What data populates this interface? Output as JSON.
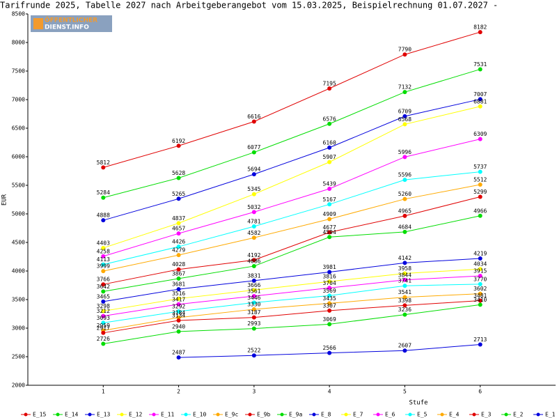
{
  "chart_data": {
    "type": "line",
    "title": "Tarifrunde 2025, Tabelle 2027 nach Arbeitgeberangebot vom 15.03.2025, Beispielrechnung 01.07.2027 -",
    "logo": [
      "ÖFFENTLICHER",
      "DIENST.INFO"
    ],
    "x_label": "Stufe",
    "y_label": "EUR",
    "x": [
      1,
      2,
      3,
      4,
      5,
      6
    ],
    "xlim": [
      0,
      7
    ],
    "xticks": [
      1,
      2,
      3,
      4,
      5,
      6
    ],
    "ylim": [
      2000,
      8500
    ],
    "yticks": [
      2000,
      2500,
      3000,
      3500,
      4000,
      4500,
      5000,
      5500,
      6000,
      6500,
      7000,
      7500,
      8000,
      8500
    ],
    "series": [
      {
        "name": "E_15",
        "color": "#e00000",
        "values": [
          5812,
          6192,
          6616,
          7195,
          7790,
          8182
        ]
      },
      {
        "name": "E_14",
        "color": "#00dd00",
        "values": [
          5284,
          5628,
          6077,
          6576,
          7132,
          7531
        ]
      },
      {
        "name": "E_13",
        "color": "#0000dd",
        "values": [
          4888,
          5265,
          5694,
          6160,
          6709,
          7007
        ]
      },
      {
        "name": "E_12",
        "color": "#ffff00",
        "values": [
          4403,
          4837,
          5345,
          5907,
          6568,
          6881
        ]
      },
      {
        "name": "E_11",
        "color": "#ff00ff",
        "values": [
          4258,
          4657,
          5032,
          5439,
          5996,
          6309
        ]
      },
      {
        "name": "E_10",
        "color": "#00ffff",
        "values": [
          4113,
          4426,
          4781,
          5167,
          5596,
          5737
        ]
      },
      {
        "name": "E_9c",
        "color": "#ffaa00",
        "values": [
          3999,
          4279,
          4582,
          4909,
          5260,
          5512
        ]
      },
      {
        "name": "E_9b",
        "color": "#e00000",
        "values": [
          3766,
          4028,
          4192,
          4677,
          4965,
          5299
        ]
      },
      {
        "name": "E_9a",
        "color": "#00dd00",
        "values": [
          3642,
          3867,
          4086,
          4594,
          4684,
          4966
        ]
      },
      {
        "name": "E_8",
        "color": "#0000dd",
        "values": [
          3465,
          3681,
          3831,
          3981,
          4142,
          4219
        ]
      },
      {
        "name": "E_7",
        "color": "#ffff00",
        "values": [
          3298,
          3516,
          3666,
          3816,
          3958,
          4034
        ]
      },
      {
        "name": "E_6",
        "color": "#ff00ff",
        "values": [
          3212,
          3417,
          3561,
          3704,
          3844,
          3915
        ]
      },
      {
        "name": "E_5",
        "color": "#00ffff",
        "values": [
          3093,
          3292,
          3446,
          3569,
          3741,
          3770
        ]
      },
      {
        "name": "E_4",
        "color": "#ffaa00",
        "values": [
          2959,
          3184,
          3330,
          3435,
          3541,
          3602
        ]
      },
      {
        "name": "E_3",
        "color": "#e00000",
        "values": [
          2917,
          3134,
          3187,
          3307,
          3398,
          3481
        ]
      },
      {
        "name": "E_2",
        "color": "#00dd00",
        "values": [
          2726,
          2940,
          2993,
          3069,
          3236,
          3410
        ]
      },
      {
        "name": "E_1",
        "color": "#0000dd",
        "values": [
          null,
          2487,
          2522,
          2566,
          2607,
          2713
        ]
      }
    ]
  }
}
